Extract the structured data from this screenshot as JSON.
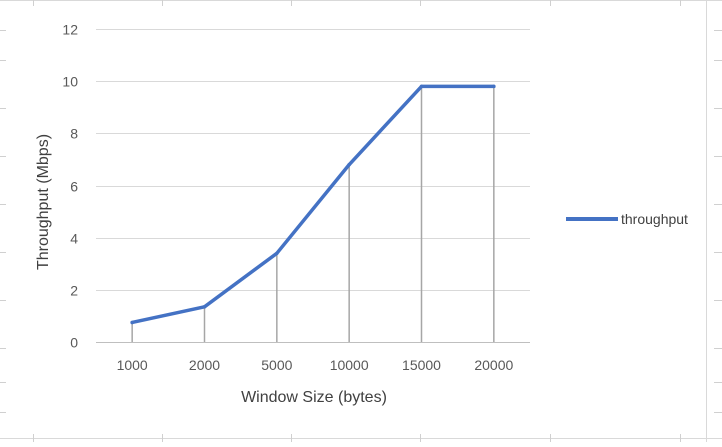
{
  "chart_data": {
    "type": "line",
    "title": "",
    "xlabel": "Window Size (bytes)",
    "ylabel": "Throughput (Mbps)",
    "categories": [
      "1000",
      "2000",
      "5000",
      "10000",
      "15000",
      "20000"
    ],
    "series": [
      {
        "name": "throughput",
        "values": [
          0.75,
          1.35,
          3.4,
          6.8,
          9.8,
          9.8
        ],
        "color": "#4472c4"
      }
    ],
    "ylim": [
      0,
      12
    ],
    "yticks": [
      "0",
      "2",
      "4",
      "6",
      "8",
      "10",
      "12"
    ],
    "grid": true,
    "drop_lines": true,
    "legend": "right"
  }
}
